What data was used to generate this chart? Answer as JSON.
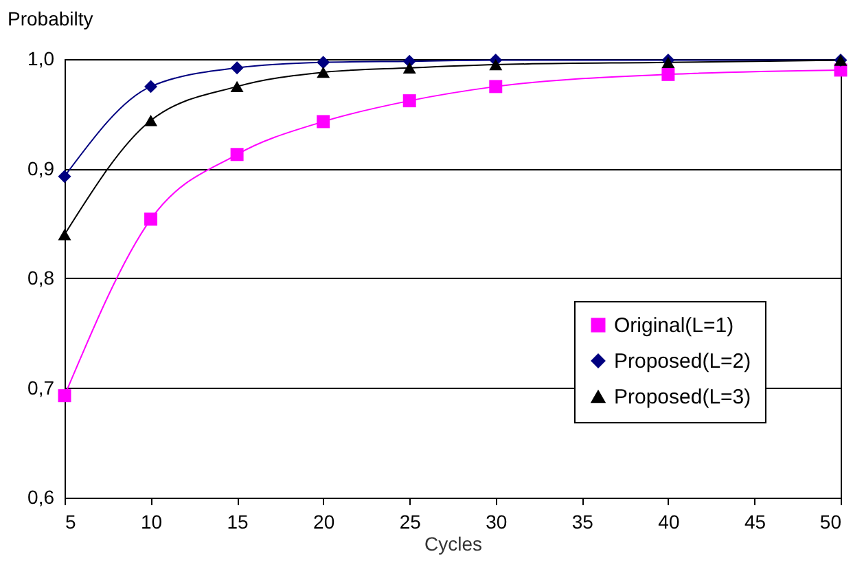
{
  "chart_data": {
    "type": "line",
    "xlabel": "Cycles",
    "ylabel": "Probabilty",
    "x": [
      5,
      10,
      15,
      20,
      25,
      30,
      40,
      50
    ],
    "series": [
      {
        "name": "Original(L=1)",
        "color": "#ff00ff",
        "marker": "square",
        "values": [
          0.693,
          0.854,
          0.913,
          0.943,
          0.962,
          0.975,
          0.986,
          0.99
        ]
      },
      {
        "name": "Proposed(L=2)",
        "color": "#000080",
        "marker": "diamond",
        "values": [
          0.893,
          0.975,
          0.992,
          0.997,
          0.998,
          0.999,
          0.999,
          0.999
        ]
      },
      {
        "name": "Proposed(L=3)",
        "color": "#000000",
        "marker": "triangle",
        "values": [
          0.84,
          0.944,
          0.975,
          0.988,
          0.992,
          0.995,
          0.997,
          0.999
        ]
      }
    ],
    "xlim": [
      5,
      50
    ],
    "xticks": [
      5,
      10,
      15,
      20,
      25,
      30,
      35,
      40,
      45,
      50
    ],
    "ylim": [
      0.6,
      1.0
    ],
    "yticks": [
      {
        "value": 0.6,
        "label": "0,6"
      },
      {
        "value": 0.7,
        "label": "0,7"
      },
      {
        "value": 0.8,
        "label": "0,8"
      },
      {
        "value": 0.9,
        "label": "0,9"
      },
      {
        "value": 1.0,
        "label": "1,0"
      }
    ],
    "grid": "y",
    "legend": "bottom right",
    "line_style": "solid"
  }
}
